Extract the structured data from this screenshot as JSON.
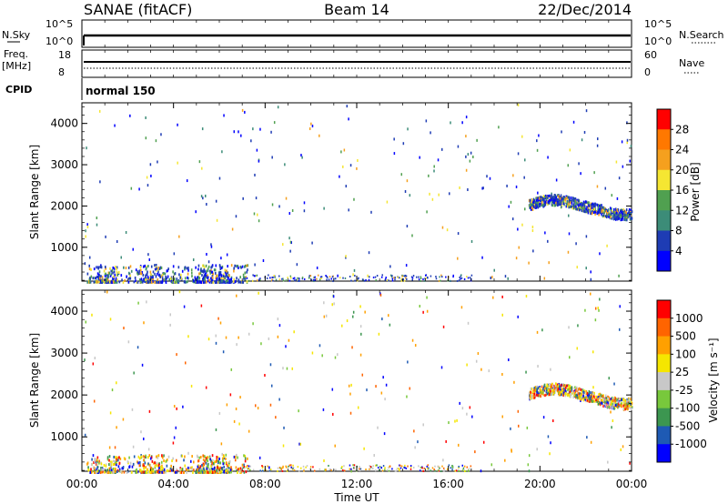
{
  "header": {
    "station": "SANAE (fitACF)",
    "beam": "Beam 14",
    "date": "22/Dec/2014"
  },
  "top_panels": {
    "nsky_label": "N.Sky",
    "nsky_ticks": [
      "10^5",
      "10^0"
    ],
    "nsearch_label": "N.Search",
    "nsearch_ticks": [
      "10^5",
      "10^0"
    ],
    "freq_label": "Freq.",
    "freq_unit": "[MHz]",
    "freq_ticks": [
      "18",
      "8"
    ],
    "nave_label": "Nave",
    "nave_ticks": [
      "60",
      "0"
    ],
    "cpid_label": "CPID",
    "cpid_value": "normal 150"
  },
  "chart_data": [
    {
      "type": "scatter",
      "panel": "power",
      "ylabel": "Slant Range [km]",
      "yticks": [
        "1000",
        "2000",
        "3000",
        "4000"
      ],
      "ylim": [
        180,
        4500
      ],
      "colorbar_label": "Power [dB]",
      "colorbar_ticks": [
        "4",
        "8",
        "12",
        "16",
        "20",
        "24",
        "28"
      ],
      "colorbar_colors": [
        "#0000ff",
        "#1e3cb4",
        "#3c8c78",
        "#50a050",
        "#f5e632",
        "#f5a01e",
        "#ff7800",
        "#ff0000"
      ],
      "clusters": [
        {
          "t": [
            0.2,
            7.2
          ],
          "r": [
            180,
            600
          ],
          "desc": "near-range scatter"
        },
        {
          "t": [
            19.5,
            24.0
          ],
          "r": [
            1650,
            2350
          ],
          "desc": "far-range band"
        }
      ]
    },
    {
      "type": "scatter",
      "panel": "velocity",
      "ylabel": "Slant Range [km]",
      "yticks": [
        "1000",
        "2000",
        "3000",
        "4000"
      ],
      "ylim": [
        180,
        4500
      ],
      "colorbar_label": "Velocity [m s⁻¹]",
      "colorbar_ticks": [
        "1000",
        "500",
        "100",
        "25",
        "-25",
        "-100",
        "-500",
        "-1000"
      ],
      "colorbar_colors": [
        "#0000ff",
        "#1e5ab4",
        "#3c9650",
        "#78c83c",
        "#c8c8c8",
        "#f5e600",
        "#ffa000",
        "#ff6400",
        "#ff0000"
      ]
    }
  ],
  "xaxis": {
    "label": "Time UT",
    "ticks": [
      "00:00",
      "04:00",
      "08:00",
      "12:00",
      "16:00",
      "20:00",
      "00:00"
    ]
  }
}
